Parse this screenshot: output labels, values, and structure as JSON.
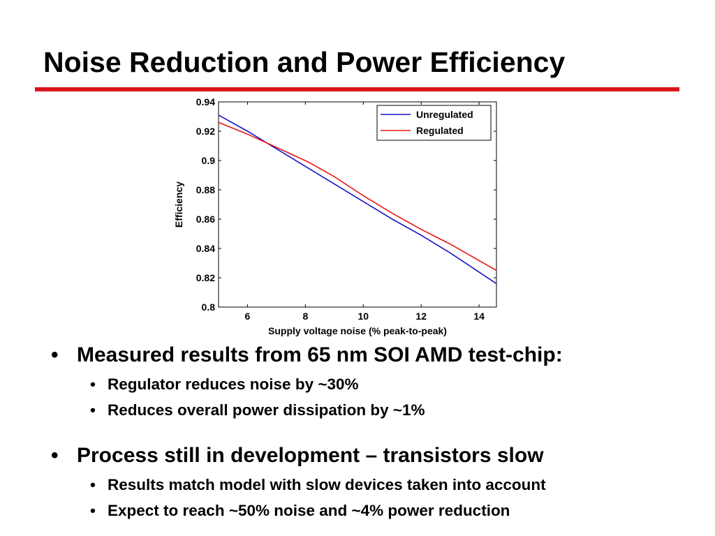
{
  "title": "Noise Reduction and Power Efficiency",
  "colors": {
    "accent_rule": "#d9141a",
    "unregulated": "#1414c8",
    "regulated": "#e81414"
  },
  "chart_data": {
    "type": "line",
    "title": "",
    "xlabel": "Supply voltage noise (% peak-to-peak)",
    "ylabel": "Efficiency",
    "xlim": [
      5,
      14.6
    ],
    "ylim": [
      0.8,
      0.94
    ],
    "xticks": [
      "6",
      "8",
      "10",
      "12",
      "14"
    ],
    "yticks": [
      "0.94",
      "0.92",
      "0.9",
      "0.88",
      "0.86",
      "0.84",
      "0.82",
      "0.8"
    ],
    "legend_position": "top-right",
    "grid": false,
    "series": [
      {
        "name": "Unregulated",
        "color": "#1414c8",
        "x": [
          5,
          6,
          7,
          8,
          9,
          10,
          11,
          12,
          13,
          14.6
        ],
        "y": [
          0.931,
          0.92,
          0.908,
          0.896,
          0.884,
          0.872,
          0.86,
          0.849,
          0.837,
          0.816
        ]
      },
      {
        "name": "Regulated",
        "color": "#e81414",
        "x": [
          5,
          6,
          7,
          8.1,
          9,
          10,
          11,
          12,
          13,
          14.6
        ],
        "y": [
          0.926,
          0.918,
          0.909,
          0.899,
          0.889,
          0.876,
          0.864,
          0.853,
          0.843,
          0.825
        ]
      }
    ]
  },
  "bullets": [
    {
      "text": "Measured results from 65 nm SOI AMD test-chip:",
      "subs": [
        "Regulator reduces noise by ~30%",
        "Reduces overall power dissipation by ~1%"
      ]
    },
    {
      "text": "Process still in development – transistors slow",
      "subs": [
        "Results match model with slow devices taken into account",
        "Expect to reach ~50% noise and ~4% power reduction"
      ]
    }
  ]
}
